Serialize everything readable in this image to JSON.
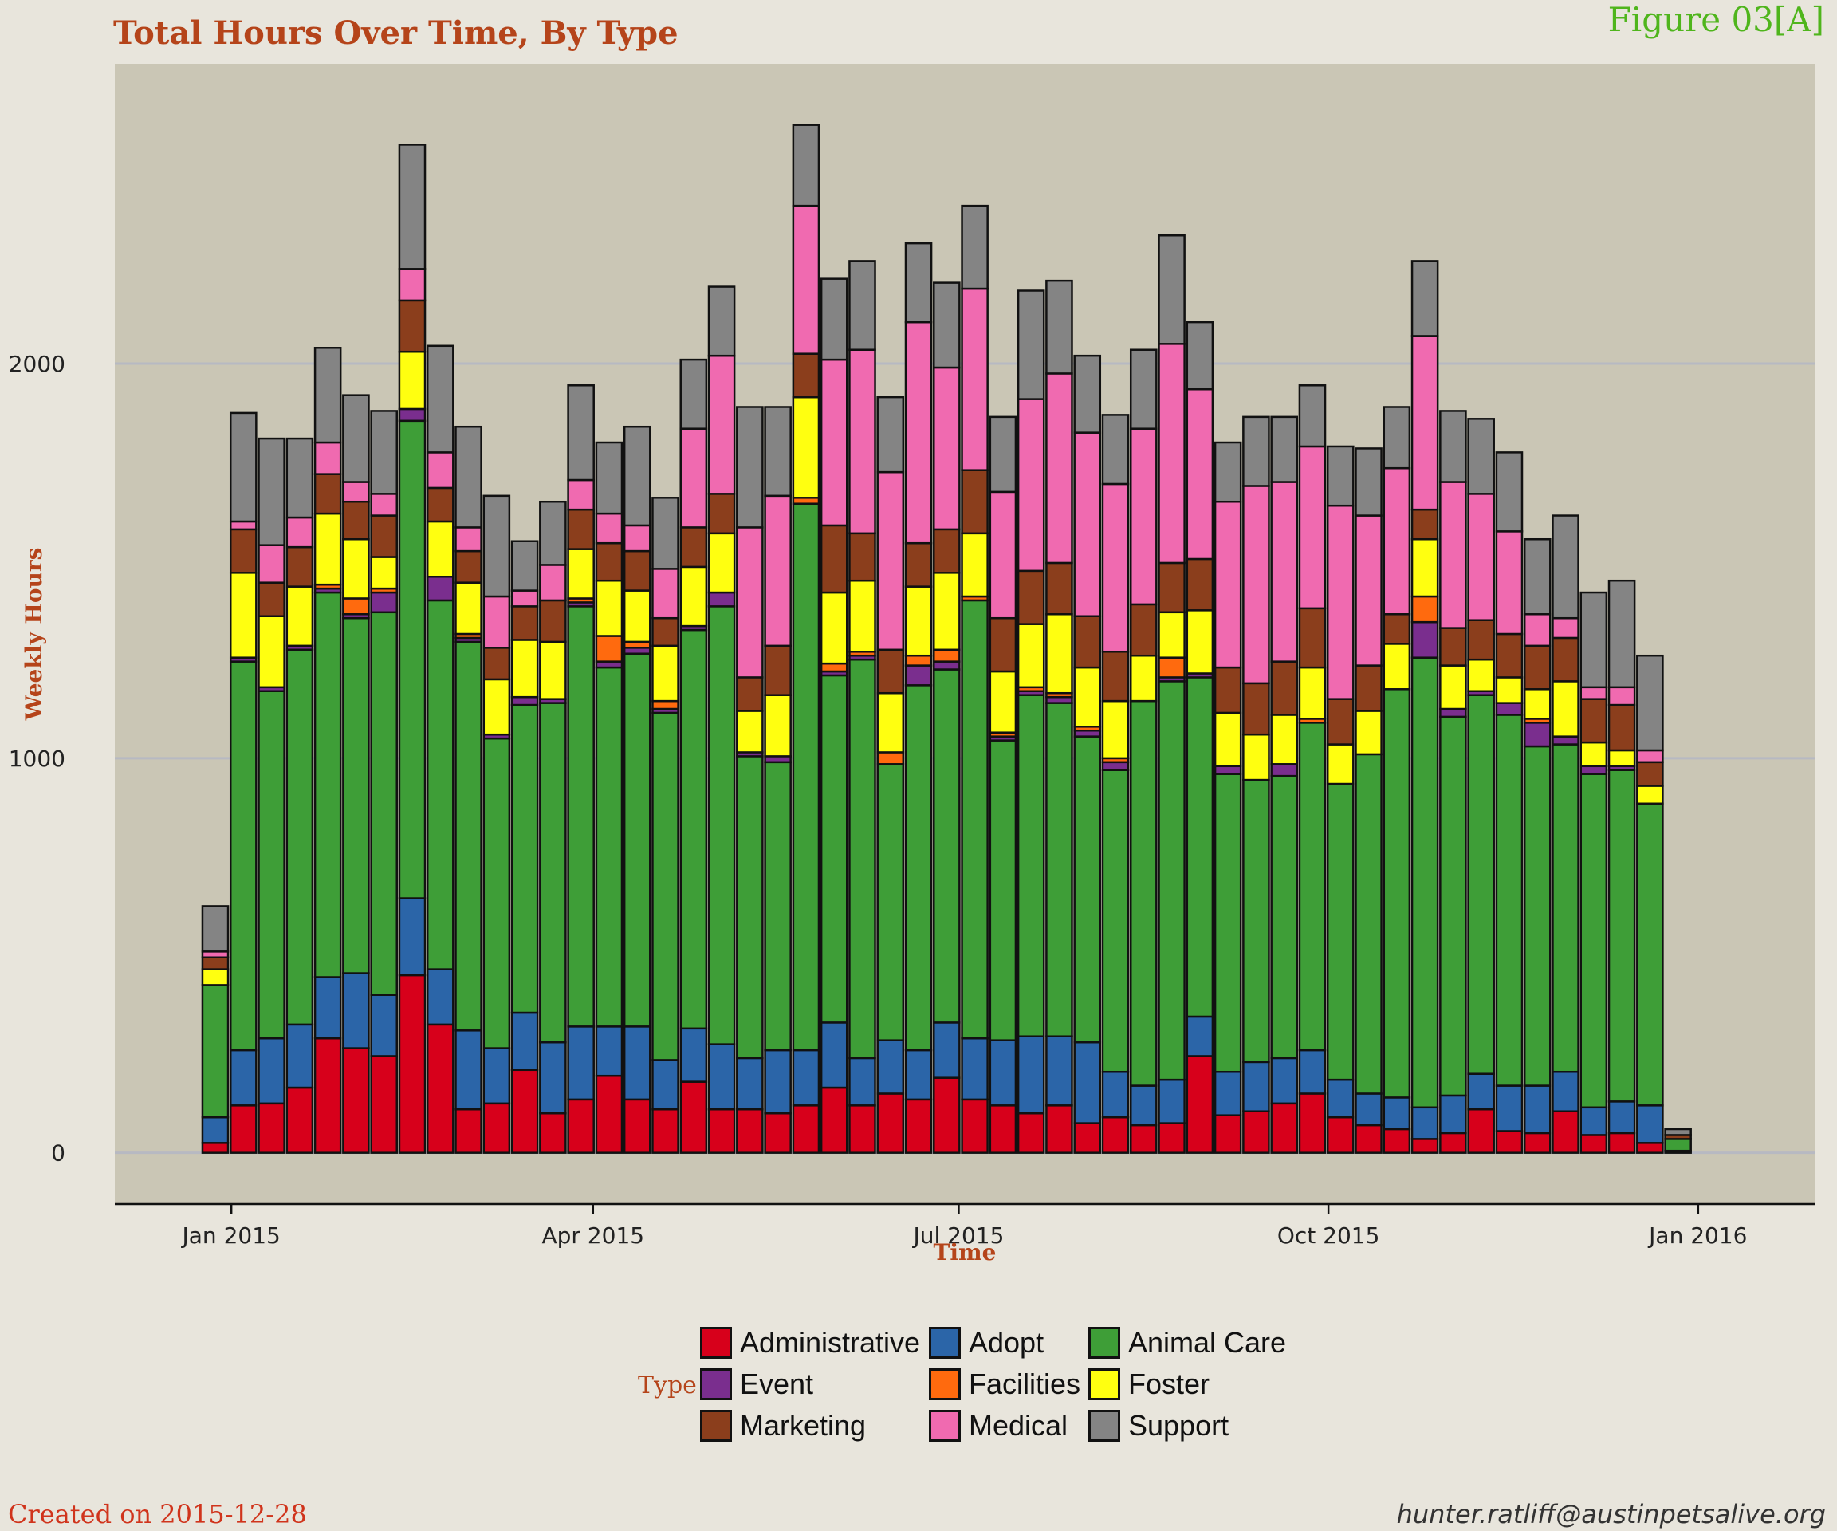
{
  "title": "Total Hours Over Time, By Type",
  "figure_label": "Figure 03[A]",
  "footer": {
    "created": "Created on 2015-12-28",
    "email": "hunter.ratliff@austinpetsalive.org"
  },
  "chart_data": {
    "type": "bar",
    "stacked": true,
    "xlabel": "Time",
    "ylabel": "Weekly Hours",
    "ylim": [
      -130,
      2760
    ],
    "y_ticks": [
      0,
      1000,
      2000
    ],
    "x_ticks": [
      "Jan 2015",
      "Apr 2015",
      "Jul 2015",
      "Oct 2015",
      "Jan 2016"
    ],
    "grid": true,
    "legend": {
      "title": "Type",
      "placement": "bottom"
    },
    "x_start": "2014-12-28",
    "bar_interval_days": 7,
    "series": [
      {
        "name": "Administrative",
        "color": "#d7001b",
        "values": [
          25,
          120,
          125,
          165,
          290,
          265,
          245,
          450,
          325,
          110,
          125,
          210,
          100,
          135,
          195,
          135,
          110,
          180,
          110,
          110,
          100,
          120,
          165,
          120,
          150,
          135,
          190,
          135,
          120,
          100,
          120,
          75,
          90,
          70,
          75,
          245,
          95,
          105,
          125,
          150,
          90,
          70,
          60,
          35,
          50,
          110,
          55,
          50,
          105,
          45,
          50,
          25,
          0
        ]
      },
      {
        "name": "Adopt",
        "color": "#2b65a8",
        "values": [
          65,
          140,
          165,
          160,
          155,
          190,
          155,
          195,
          140,
          200,
          140,
          145,
          180,
          185,
          125,
          185,
          125,
          135,
          165,
          130,
          160,
          140,
          165,
          120,
          135,
          125,
          140,
          155,
          165,
          195,
          175,
          205,
          115,
          100,
          110,
          100,
          110,
          125,
          115,
          110,
          95,
          80,
          80,
          80,
          95,
          90,
          115,
          120,
          100,
          70,
          80,
          95,
          5
        ]
      },
      {
        "name": "Animal Care",
        "color": "#3e9e37",
        "values": [
          335,
          985,
          880,
          950,
          975,
          900,
          970,
          1210,
          935,
          985,
          785,
          780,
          860,
          1065,
          910,
          945,
          880,
          1010,
          1110,
          765,
          730,
          1385,
          880,
          1010,
          700,
          925,
          895,
          1110,
          760,
          865,
          845,
          775,
          765,
          975,
          1010,
          860,
          755,
          715,
          715,
          830,
          750,
          860,
          1035,
          1140,
          960,
          960,
          940,
          860,
          830,
          845,
          840,
          765,
          30
        ]
      },
      {
        "name": "Event",
        "color": "#7a2e8e",
        "values": [
          0,
          10,
          10,
          10,
          10,
          10,
          50,
          30,
          60,
          10,
          10,
          20,
          10,
          10,
          15,
          15,
          10,
          10,
          35,
          10,
          15,
          0,
          10,
          10,
          0,
          50,
          20,
          0,
          10,
          10,
          15,
          15,
          20,
          0,
          10,
          10,
          20,
          0,
          30,
          0,
          0,
          0,
          0,
          90,
          20,
          10,
          30,
          60,
          20,
          20,
          10,
          0,
          0
        ]
      },
      {
        "name": "Facilities",
        "color": "#ff6a0e",
        "values": [
          0,
          0,
          0,
          0,
          10,
          40,
          10,
          0,
          0,
          10,
          0,
          0,
          0,
          10,
          65,
          15,
          20,
          0,
          0,
          0,
          0,
          15,
          20,
          10,
          30,
          25,
          30,
          10,
          10,
          10,
          10,
          10,
          10,
          0,
          50,
          0,
          0,
          0,
          0,
          10,
          0,
          0,
          0,
          65,
          0,
          0,
          0,
          10,
          0,
          0,
          0,
          0,
          0
        ]
      },
      {
        "name": "Foster",
        "color": "#ffff10",
        "values": [
          40,
          215,
          180,
          150,
          180,
          150,
          80,
          145,
          140,
          130,
          140,
          145,
          145,
          125,
          140,
          130,
          140,
          150,
          150,
          105,
          155,
          255,
          180,
          180,
          150,
          175,
          195,
          160,
          155,
          160,
          200,
          150,
          145,
          115,
          115,
          160,
          135,
          115,
          125,
          130,
          100,
          110,
          115,
          145,
          110,
          80,
          65,
          75,
          140,
          60,
          40,
          45,
          0
        ]
      },
      {
        "name": "Marketing",
        "color": "#8b3e1c",
        "values": [
          30,
          110,
          85,
          100,
          100,
          95,
          105,
          130,
          85,
          80,
          80,
          85,
          105,
          100,
          95,
          100,
          70,
          100,
          100,
          85,
          125,
          110,
          170,
          120,
          110,
          110,
          110,
          160,
          135,
          135,
          130,
          130,
          125,
          130,
          125,
          130,
          115,
          130,
          135,
          150,
          115,
          115,
          75,
          75,
          95,
          100,
          110,
          110,
          110,
          110,
          115,
          60,
          10
        ]
      },
      {
        "name": "Medical",
        "color": "#f06ab0",
        "values": [
          15,
          20,
          95,
          75,
          80,
          50,
          55,
          80,
          90,
          60,
          130,
          40,
          90,
          75,
          75,
          65,
          125,
          250,
          350,
          380,
          380,
          375,
          420,
          465,
          450,
          560,
          410,
          460,
          320,
          435,
          480,
          465,
          425,
          445,
          555,
          430,
          420,
          500,
          455,
          410,
          490,
          380,
          370,
          440,
          370,
          320,
          260,
          80,
          50,
          30,
          45,
          30,
          0
        ]
      },
      {
        "name": "Support",
        "color": "#848484",
        "values": [
          115,
          275,
          270,
          200,
          240,
          220,
          210,
          315,
          270,
          255,
          255,
          125,
          160,
          240,
          180,
          250,
          180,
          175,
          175,
          305,
          225,
          205,
          205,
          225,
          190,
          200,
          215,
          210,
          190,
          275,
          235,
          195,
          175,
          200,
          275,
          170,
          150,
          175,
          165,
          155,
          150,
          170,
          155,
          190,
          180,
          190,
          200,
          190,
          260,
          240,
          270,
          240,
          15
        ]
      }
    ]
  },
  "legend_items": [
    {
      "label": "Administrative",
      "color": "#d7001b"
    },
    {
      "label": "Adopt",
      "color": "#2b65a8"
    },
    {
      "label": "Animal Care",
      "color": "#3e9e37"
    },
    {
      "label": "Event",
      "color": "#7a2e8e"
    },
    {
      "label": "Facilities",
      "color": "#ff6a0e"
    },
    {
      "label": "Foster",
      "color": "#ffff10"
    },
    {
      "label": "Marketing",
      "color": "#8b3e1c"
    },
    {
      "label": "Medical",
      "color": "#f06ab0"
    },
    {
      "label": "Support",
      "color": "#848484"
    }
  ]
}
